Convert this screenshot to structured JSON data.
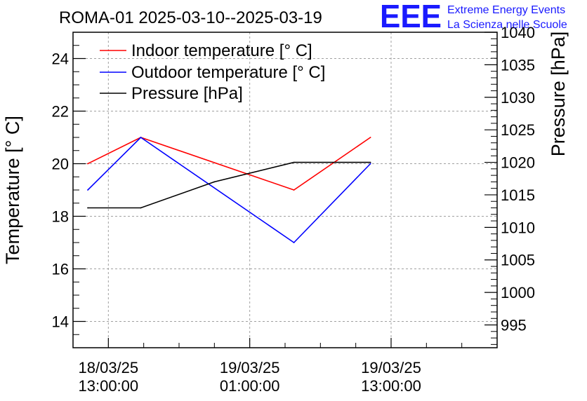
{
  "chart_data": {
    "type": "line",
    "title": "ROMA-01 2025-03-10--2025-03-19",
    "ylabel": "Temperature [° C]",
    "y2label": "Pressure [hPa]",
    "ylim": [
      13,
      25
    ],
    "y2lim": [
      991.5,
      1040
    ],
    "x_range_hours": [
      -3,
      33
    ],
    "x_ticks": [
      {
        "hours": 0,
        "date": "18/03/25",
        "time": "13:00:00"
      },
      {
        "hours": 12,
        "date": "19/03/25",
        "time": "01:00:00"
      },
      {
        "hours": 24,
        "date": "19/03/25",
        "time": "13:00:00"
      }
    ],
    "y_ticks": [
      14,
      16,
      18,
      20,
      22,
      24
    ],
    "y2_ticks": [
      995,
      1000,
      1005,
      1010,
      1015,
      1020,
      1025,
      1030,
      1035,
      1040
    ],
    "grid": true,
    "legend_position": "top-left",
    "series": [
      {
        "name": "Indoor temperature [° C]",
        "axis": "left",
        "color": "#ff0000",
        "x": [
          -1.75,
          2.75,
          15.75,
          22.25
        ],
        "values": [
          20,
          21,
          19,
          21
        ]
      },
      {
        "name": "Outdoor temperature [° C]",
        "axis": "left",
        "color": "#0000ff",
        "x": [
          -1.75,
          2.75,
          15.75,
          22.25
        ],
        "values": [
          19,
          21,
          17,
          20
        ]
      },
      {
        "name": "Pressure [hPa]",
        "axis": "right",
        "color": "#000000",
        "x": [
          -1.75,
          2.75,
          9,
          15.75,
          22.25
        ],
        "values": [
          1013,
          1013,
          1017,
          1020,
          1020
        ]
      }
    ]
  },
  "logo": {
    "mark": "EEE",
    "line1": "Extreme Energy Events",
    "line2": "La Scienza nelle Scuole"
  }
}
